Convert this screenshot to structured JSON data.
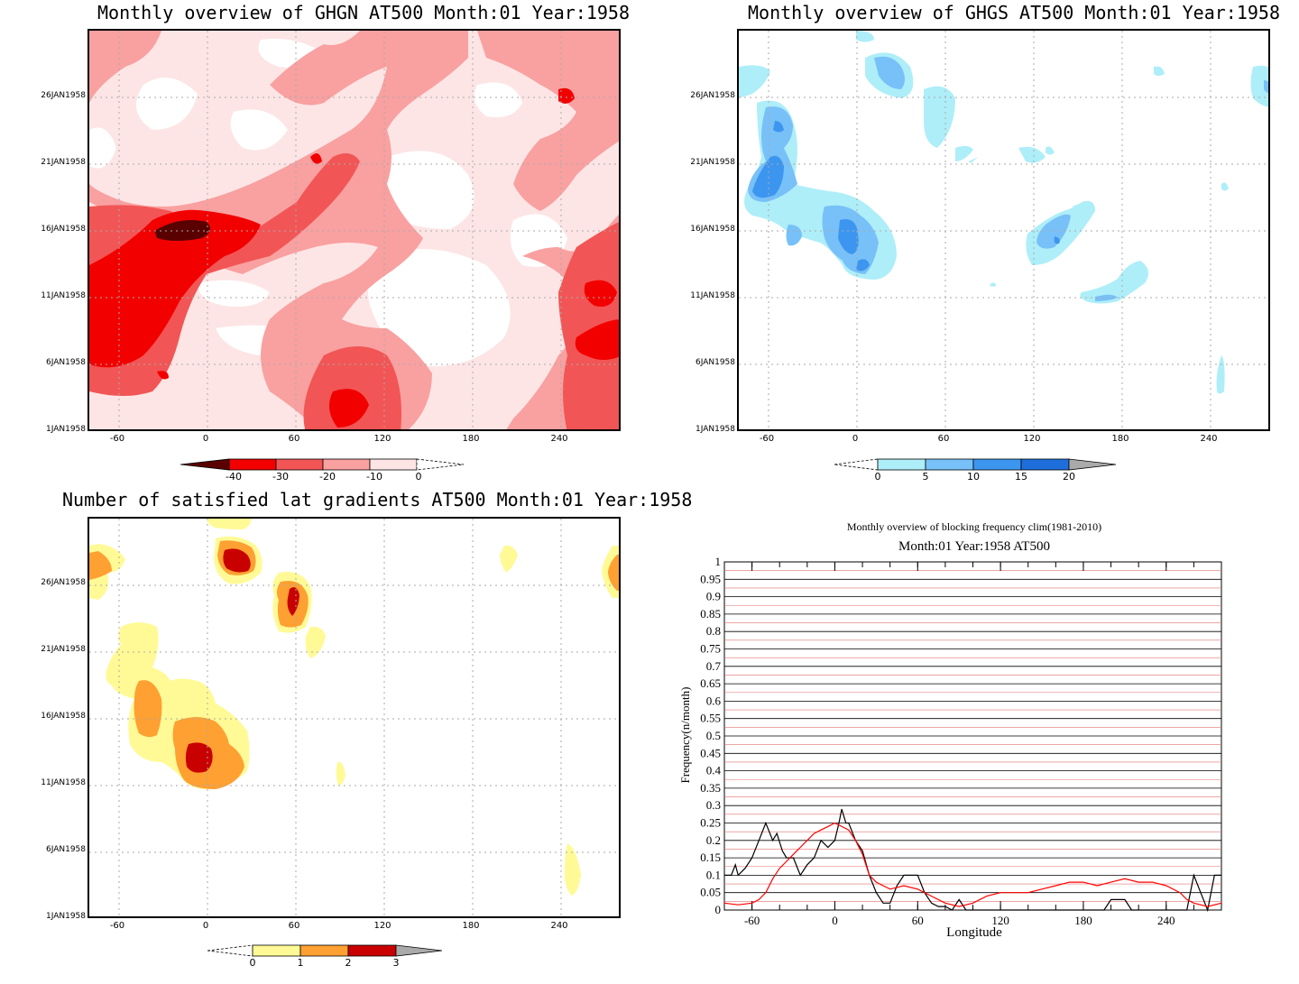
{
  "panels": [
    {
      "title": "Monthly overview of GHGN AT500 Month:01 Year:1958",
      "yticks": [
        "26JAN1958",
        "21JAN1958",
        "16JAN1958",
        "11JAN1958",
        "6JAN1958",
        "1JAN1958"
      ],
      "xticks": [
        "-60",
        "0",
        "60",
        "120",
        "180",
        "240"
      ],
      "colorbar": {
        "labels": [
          "-40",
          "-30",
          "-20",
          "-10",
          "0"
        ],
        "colors": [
          "#5a0000",
          "#f20000",
          "#f25555",
          "#f9a0a0",
          "#fde5e5"
        ]
      }
    },
    {
      "title": "Monthly overview of GHGS AT500 Month:01 Year:1958",
      "yticks": [
        "26JAN1958",
        "21JAN1958",
        "16JAN1958",
        "11JAN1958",
        "6JAN1958",
        "1JAN1958"
      ],
      "xticks": [
        "-60",
        "0",
        "60",
        "120",
        "180",
        "240"
      ],
      "colorbar": {
        "labels": [
          "0",
          "5",
          "10",
          "15",
          "20"
        ],
        "colors": [
          "#aeeef8",
          "#78c0f8",
          "#3c96f0",
          "#1e6edc",
          "#aaaaaa"
        ]
      }
    },
    {
      "title": "Number of satisfied lat gradients AT500 Month:01 Year:1958",
      "yticks": [
        "26JAN1958",
        "21JAN1958",
        "16JAN1958",
        "11JAN1958",
        "6JAN1958",
        "1JAN1958"
      ],
      "xticks": [
        "-60",
        "0",
        "60",
        "120",
        "180",
        "240"
      ],
      "colorbar": {
        "labels": [
          "0",
          "1",
          "2",
          "3"
        ],
        "colors": [
          "#fffa96",
          "#fea032",
          "#c80000",
          "#aaaaaa"
        ]
      }
    }
  ],
  "line_panel": {
    "title_line1": "Monthly overview of blocking frequency clim(1981-2010)",
    "title_line2": "Month:01 Year:1958  AT500",
    "ylabel": "Frequency(n/month)",
    "xlabel": "Longitude",
    "yticks": [
      "1",
      "0.95",
      "0.9",
      "0.85",
      "0.8",
      "0.75",
      "0.7",
      "0.65",
      "0.6",
      "0.55",
      "0.5",
      "0.45",
      "0.4",
      "0.35",
      "0.3",
      "0.25",
      "0.2",
      "0.15",
      "0.1",
      "0.05",
      "0"
    ],
    "xticks": [
      "-60",
      "0",
      "60",
      "120",
      "180",
      "240"
    ]
  },
  "chart_data": [
    {
      "type": "heatmap",
      "title": "Monthly overview of GHGN AT500 Month:01 Year:1958",
      "x_range": [
        -80,
        280
      ],
      "y_range": [
        "1JAN1958",
        "31JAN1958"
      ],
      "levels": [
        -40,
        -30,
        -20,
        -10,
        0
      ],
      "colors": [
        "#5a0000",
        "#f20000",
        "#f25555",
        "#f9a0a0",
        "#fde5e5"
      ]
    },
    {
      "type": "heatmap",
      "title": "Monthly overview of GHGS AT500 Month:01 Year:1958",
      "x_range": [
        -80,
        280
      ],
      "y_range": [
        "1JAN1958",
        "31JAN1958"
      ],
      "levels": [
        0,
        5,
        10,
        15,
        20
      ],
      "colors": [
        "#aeeef8",
        "#78c0f8",
        "#3c96f0",
        "#1e6edc",
        "#aaaaaa"
      ]
    },
    {
      "type": "heatmap",
      "title": "Number of satisfied lat gradients AT500 Month:01 Year:1958",
      "x_range": [
        -80,
        280
      ],
      "y_range": [
        "1JAN1958",
        "31JAN1958"
      ],
      "levels": [
        0,
        1,
        2,
        3
      ],
      "colors": [
        "#fffa96",
        "#fea032",
        "#c80000",
        "#aaaaaa"
      ]
    },
    {
      "type": "line",
      "title": "Monthly overview of blocking frequency clim(1981-2010)",
      "subtitle": "Month:01 Year:1958  AT500",
      "xlabel": "Longitude",
      "ylabel": "Frequency(n/month)",
      "xlim": [
        -80,
        280
      ],
      "ylim": [
        0,
        1
      ],
      "series": [
        {
          "color": "#000000",
          "x": [
            -80,
            -75,
            -72,
            -70,
            -65,
            -60,
            -55,
            -50,
            -45,
            -42,
            -38,
            -35,
            -30,
            -25,
            -20,
            -15,
            -10,
            -5,
            0,
            3,
            5,
            8,
            10,
            15,
            20,
            25,
            30,
            35,
            40,
            45,
            50,
            55,
            60,
            65,
            70,
            75,
            80,
            85,
            90,
            95,
            100,
            130,
            170,
            195,
            200,
            205,
            210,
            215,
            220,
            225,
            230,
            240,
            245,
            250,
            255,
            260,
            265,
            270,
            275,
            280
          ],
          "y": [
            0.1,
            0.1,
            0.13,
            0.1,
            0.12,
            0.15,
            0.2,
            0.25,
            0.2,
            0.22,
            0.17,
            0.15,
            0.15,
            0.1,
            0.13,
            0.15,
            0.2,
            0.18,
            0.2,
            0.25,
            0.29,
            0.25,
            0.25,
            0.2,
            0.17,
            0.1,
            0.05,
            0.02,
            0.02,
            0.07,
            0.1,
            0.1,
            0.1,
            0.05,
            0.02,
            0.01,
            0.01,
            0.0,
            0.03,
            0.0,
            0.0,
            0.0,
            0.0,
            0.0,
            0.03,
            0.03,
            0.03,
            0.0,
            0.0,
            0.0,
            0.0,
            0.0,
            0.0,
            0.0,
            0.0,
            0.1,
            0.05,
            0.0,
            0.1,
            0.1
          ]
        },
        {
          "color": "#ff0000",
          "x": [
            -80,
            -70,
            -60,
            -55,
            -50,
            -45,
            -40,
            -35,
            -30,
            -25,
            -20,
            -15,
            -10,
            -5,
            0,
            5,
            10,
            15,
            20,
            25,
            30,
            35,
            40,
            50,
            60,
            70,
            80,
            90,
            100,
            110,
            120,
            130,
            140,
            150,
            160,
            170,
            180,
            190,
            200,
            210,
            220,
            230,
            240,
            250,
            255,
            260,
            270,
            280
          ],
          "y": [
            0.02,
            0.015,
            0.02,
            0.03,
            0.05,
            0.09,
            0.12,
            0.14,
            0.16,
            0.18,
            0.2,
            0.22,
            0.23,
            0.24,
            0.25,
            0.24,
            0.23,
            0.2,
            0.16,
            0.1,
            0.08,
            0.07,
            0.06,
            0.07,
            0.06,
            0.04,
            0.02,
            0.01,
            0.02,
            0.04,
            0.05,
            0.05,
            0.05,
            0.06,
            0.07,
            0.08,
            0.08,
            0.07,
            0.08,
            0.09,
            0.08,
            0.08,
            0.07,
            0.05,
            0.03,
            0.02,
            0.01,
            0.02
          ]
        }
      ]
    }
  ]
}
